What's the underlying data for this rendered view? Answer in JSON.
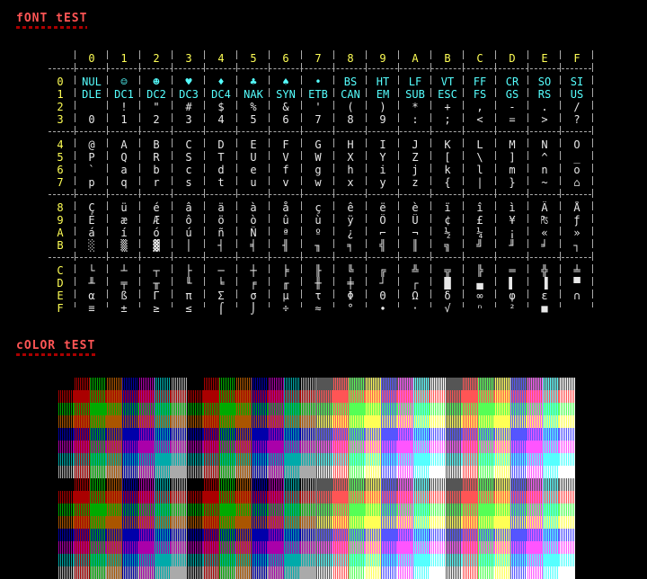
{
  "headings": {
    "font_test": "fONT tEST",
    "color_test": "cOLOR tEST"
  },
  "font_table": {
    "columns": [
      "0",
      "1",
      "2",
      "3",
      "4",
      "5",
      "6",
      "7",
      "8",
      "9",
      "A",
      "B",
      "C",
      "D",
      "E",
      "F"
    ],
    "rows": [
      {
        "label": "0",
        "kind": "ctrl",
        "cells": [
          "NUL",
          "☺",
          "☻",
          "♥",
          "♦",
          "♣",
          "♠",
          "•",
          "BS",
          "HT",
          "LF",
          "VT",
          "FF",
          "CR",
          "SO",
          "SI"
        ]
      },
      {
        "label": "1",
        "kind": "ctrl",
        "cells": [
          "DLE",
          "DC1",
          "DC2",
          "DC3",
          "DC4",
          "NAK",
          "SYN",
          "ETB",
          "CAN",
          "EM",
          "SUB",
          "ESC",
          "FS",
          "GS",
          "RS",
          "US"
        ]
      },
      {
        "label": "2",
        "kind": "prn",
        "cells": [
          " ",
          "!",
          "\"",
          "#",
          "$",
          "%",
          "&",
          "'",
          "(",
          ")",
          "*",
          "+",
          ",",
          "-",
          ".",
          "/"
        ]
      },
      {
        "label": "3",
        "kind": "prn",
        "cells": [
          "0",
          "1",
          "2",
          "3",
          "4",
          "5",
          "6",
          "7",
          "8",
          "9",
          ":",
          ";",
          "<",
          "=",
          ">",
          "?"
        ]
      },
      {
        "label": "4",
        "kind": "prn",
        "cells": [
          "@",
          "A",
          "B",
          "C",
          "D",
          "E",
          "F",
          "G",
          "H",
          "I",
          "J",
          "K",
          "L",
          "M",
          "N",
          "O"
        ]
      },
      {
        "label": "5",
        "kind": "prn",
        "cells": [
          "P",
          "Q",
          "R",
          "S",
          "T",
          "U",
          "V",
          "W",
          "X",
          "Y",
          "Z",
          "[",
          "\\",
          "]",
          "^",
          "_"
        ]
      },
      {
        "label": "6",
        "kind": "prn",
        "cells": [
          "`",
          "a",
          "b",
          "c",
          "d",
          "e",
          "f",
          "g",
          "h",
          "i",
          "j",
          "k",
          "l",
          "m",
          "n",
          "o"
        ]
      },
      {
        "label": "7",
        "kind": "prn",
        "cells": [
          "p",
          "q",
          "r",
          "s",
          "t",
          "u",
          "v",
          "w",
          "x",
          "y",
          "z",
          "{",
          "|",
          "}",
          "~",
          "⌂"
        ]
      },
      {
        "label": "8",
        "kind": "prn",
        "cells": [
          "Ç",
          "ü",
          "é",
          "â",
          "ä",
          "à",
          "å",
          "ç",
          "ê",
          "ë",
          "è",
          "ï",
          "î",
          "ì",
          "Ä",
          "Å"
        ]
      },
      {
        "label": "9",
        "kind": "prn",
        "cells": [
          "É",
          "æ",
          "Æ",
          "ô",
          "ö",
          "ò",
          "û",
          "ù",
          "ÿ",
          "Ö",
          "Ü",
          "¢",
          "£",
          "¥",
          "₧",
          "ƒ"
        ]
      },
      {
        "label": "A",
        "kind": "prn",
        "cells": [
          "á",
          "í",
          "ó",
          "ú",
          "ñ",
          "Ñ",
          "ª",
          "º",
          "¿",
          "⌐",
          "¬",
          "½",
          "¼",
          "¡",
          "«",
          "»"
        ]
      },
      {
        "label": "B",
        "kind": "prn",
        "cells": [
          "░",
          "▒",
          "▓",
          "│",
          "┤",
          "╡",
          "╢",
          "╖",
          "╕",
          "╣",
          "║",
          "╗",
          "╝",
          "╜",
          "╛",
          "┐"
        ]
      },
      {
        "label": "C",
        "kind": "prn",
        "cells": [
          "└",
          "┴",
          "┬",
          "├",
          "─",
          "┼",
          "╞",
          "╟",
          "╚",
          "╔",
          "╩",
          "╦",
          "╠",
          "═",
          "╬",
          "╧"
        ]
      },
      {
        "label": "D",
        "kind": "prn",
        "cells": [
          "╨",
          "╤",
          "╥",
          "╙",
          "╘",
          "╒",
          "╓",
          "╫",
          "╪",
          "┘",
          "┌",
          "█",
          "▄",
          "▌",
          "▐",
          "▀"
        ]
      },
      {
        "label": "E",
        "kind": "prn",
        "cells": [
          "α",
          "ß",
          "Γ",
          "π",
          "Σ",
          "σ",
          "µ",
          "τ",
          "Φ",
          "Θ",
          "Ω",
          "δ",
          "∞",
          "φ",
          "ε",
          "∩"
        ]
      },
      {
        "label": "F",
        "kind": "prn",
        "cells": [
          "≡",
          "±",
          "≥",
          "≤",
          "⌠",
          "⌡",
          "÷",
          "≈",
          "°",
          "∙",
          "·",
          "√",
          "ⁿ",
          "²",
          "■",
          " "
        ]
      }
    ]
  },
  "colors": {
    "background": "#000000",
    "heading": "#ff5555",
    "header": "#ffff55",
    "control": "#55ffff",
    "printable": "#e8e8e8",
    "separator": "#aaaaaa",
    "palette_dark": [
      "#000000",
      "#aa0000",
      "#00aa00",
      "#aa5500",
      "#0000aa",
      "#aa00aa",
      "#00aaaa",
      "#aaaaaa"
    ],
    "palette_bright": [
      "#555555",
      "#ff5555",
      "#55ff55",
      "#ffff55",
      "#5555ff",
      "#ff55ff",
      "#55ffff",
      "#ffffff"
    ]
  }
}
